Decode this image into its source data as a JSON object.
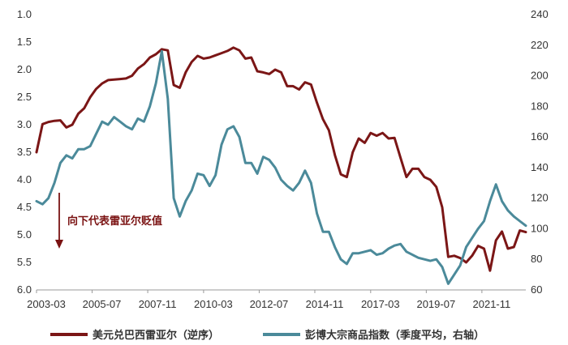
{
  "chart_data": {
    "type": "line",
    "x_ticks": [
      "2003-03",
      "2005-07",
      "2007-11",
      "2010-03",
      "2012-07",
      "2014-11",
      "2017-03",
      "2019-07",
      "2021-11"
    ],
    "x_start": 2003.17,
    "x_end": 2023.67,
    "x_tick_positions": [
      2003.17,
      2005.5,
      2007.83,
      2010.17,
      2012.5,
      2014.83,
      2017.17,
      2019.5,
      2021.83
    ],
    "y_left": {
      "min": 1.0,
      "max": 6.0,
      "inverted": true,
      "ticks": [
        "1.0",
        "1.5",
        "2.0",
        "2.5",
        "3.0",
        "3.5",
        "4.0",
        "4.5",
        "5.0",
        "5.5",
        "6.0"
      ]
    },
    "y_right": {
      "min": 60,
      "max": 240,
      "inverted": false,
      "ticks": [
        "240",
        "220",
        "200",
        "180",
        "160",
        "140",
        "120",
        "100",
        "80",
        "60"
      ]
    },
    "annotation": "向下代表雷亚尔贬值",
    "series": [
      {
        "name": "美元兑巴西雷亚尔（逆序）",
        "axis": "left",
        "color": "#7b1616",
        "points": [
          [
            2003.17,
            3.5
          ],
          [
            2003.42,
            2.99
          ],
          [
            2003.67,
            2.95
          ],
          [
            2003.92,
            2.93
          ],
          [
            2004.17,
            2.92
          ],
          [
            2004.42,
            3.05
          ],
          [
            2004.67,
            3.0
          ],
          [
            2004.92,
            2.8
          ],
          [
            2005.17,
            2.7
          ],
          [
            2005.42,
            2.5
          ],
          [
            2005.67,
            2.35
          ],
          [
            2005.92,
            2.25
          ],
          [
            2006.17,
            2.19
          ],
          [
            2006.42,
            2.18
          ],
          [
            2006.67,
            2.17
          ],
          [
            2006.92,
            2.16
          ],
          [
            2007.17,
            2.11
          ],
          [
            2007.42,
            1.98
          ],
          [
            2007.67,
            1.9
          ],
          [
            2007.92,
            1.78
          ],
          [
            2008.17,
            1.72
          ],
          [
            2008.42,
            1.63
          ],
          [
            2008.67,
            1.65
          ],
          [
            2008.92,
            2.28
          ],
          [
            2009.17,
            2.33
          ],
          [
            2009.42,
            2.05
          ],
          [
            2009.67,
            1.86
          ],
          [
            2009.92,
            1.75
          ],
          [
            2010.17,
            1.8
          ],
          [
            2010.42,
            1.78
          ],
          [
            2010.67,
            1.74
          ],
          [
            2010.92,
            1.7
          ],
          [
            2011.17,
            1.66
          ],
          [
            2011.42,
            1.6
          ],
          [
            2011.67,
            1.65
          ],
          [
            2011.92,
            1.8
          ],
          [
            2012.17,
            1.78
          ],
          [
            2012.42,
            2.03
          ],
          [
            2012.67,
            2.05
          ],
          [
            2012.92,
            2.08
          ],
          [
            2013.17,
            2.0
          ],
          [
            2013.42,
            2.05
          ],
          [
            2013.67,
            2.3
          ],
          [
            2013.92,
            2.3
          ],
          [
            2014.17,
            2.36
          ],
          [
            2014.42,
            2.23
          ],
          [
            2014.67,
            2.27
          ],
          [
            2014.92,
            2.6
          ],
          [
            2015.17,
            2.9
          ],
          [
            2015.42,
            3.1
          ],
          [
            2015.67,
            3.55
          ],
          [
            2015.92,
            3.9
          ],
          [
            2016.17,
            3.95
          ],
          [
            2016.42,
            3.5
          ],
          [
            2016.67,
            3.25
          ],
          [
            2016.92,
            3.33
          ],
          [
            2017.17,
            3.15
          ],
          [
            2017.42,
            3.2
          ],
          [
            2017.67,
            3.15
          ],
          [
            2017.92,
            3.25
          ],
          [
            2018.17,
            3.24
          ],
          [
            2018.42,
            3.6
          ],
          [
            2018.67,
            3.95
          ],
          [
            2018.92,
            3.8
          ],
          [
            2019.17,
            3.8
          ],
          [
            2019.42,
            3.95
          ],
          [
            2019.67,
            4.0
          ],
          [
            2019.92,
            4.13
          ],
          [
            2020.17,
            4.5
          ],
          [
            2020.42,
            5.4
          ],
          [
            2020.67,
            5.38
          ],
          [
            2020.92,
            5.42
          ],
          [
            2021.17,
            5.5
          ],
          [
            2021.42,
            5.38
          ],
          [
            2021.67,
            5.2
          ],
          [
            2021.92,
            5.25
          ],
          [
            2022.17,
            5.65
          ],
          [
            2022.42,
            5.1
          ],
          [
            2022.67,
            4.94
          ],
          [
            2022.92,
            5.25
          ],
          [
            2023.17,
            5.22
          ],
          [
            2023.42,
            4.92
          ],
          [
            2023.67,
            4.95
          ]
        ]
      },
      {
        "name": "彭博大宗商品指数（季度平均，右轴）",
        "axis": "right",
        "color": "#4b8a9a",
        "points": [
          [
            2003.17,
            118
          ],
          [
            2003.42,
            116
          ],
          [
            2003.67,
            120
          ],
          [
            2003.92,
            130
          ],
          [
            2004.17,
            143
          ],
          [
            2004.42,
            148
          ],
          [
            2004.67,
            146
          ],
          [
            2004.92,
            152
          ],
          [
            2005.17,
            152
          ],
          [
            2005.42,
            154
          ],
          [
            2005.67,
            162
          ],
          [
            2005.92,
            170
          ],
          [
            2006.17,
            168
          ],
          [
            2006.42,
            173
          ],
          [
            2006.67,
            170
          ],
          [
            2006.92,
            167
          ],
          [
            2007.17,
            165
          ],
          [
            2007.42,
            172
          ],
          [
            2007.67,
            170
          ],
          [
            2007.92,
            180
          ],
          [
            2008.17,
            195
          ],
          [
            2008.42,
            216
          ],
          [
            2008.67,
            185
          ],
          [
            2008.92,
            120
          ],
          [
            2009.17,
            108
          ],
          [
            2009.42,
            118
          ],
          [
            2009.67,
            125
          ],
          [
            2009.92,
            136
          ],
          [
            2010.17,
            135
          ],
          [
            2010.42,
            128
          ],
          [
            2010.67,
            135
          ],
          [
            2010.92,
            155
          ],
          [
            2011.17,
            165
          ],
          [
            2011.42,
            167
          ],
          [
            2011.67,
            160
          ],
          [
            2011.92,
            143
          ],
          [
            2012.17,
            143
          ],
          [
            2012.42,
            136
          ],
          [
            2012.67,
            147
          ],
          [
            2012.92,
            145
          ],
          [
            2013.17,
            140
          ],
          [
            2013.42,
            132
          ],
          [
            2013.67,
            128
          ],
          [
            2013.92,
            125
          ],
          [
            2014.17,
            130
          ],
          [
            2014.42,
            138
          ],
          [
            2014.67,
            130
          ],
          [
            2014.92,
            110
          ],
          [
            2015.17,
            98
          ],
          [
            2015.42,
            98
          ],
          [
            2015.67,
            88
          ],
          [
            2015.92,
            80
          ],
          [
            2016.17,
            77
          ],
          [
            2016.42,
            84
          ],
          [
            2016.67,
            84
          ],
          [
            2016.92,
            85
          ],
          [
            2017.17,
            86
          ],
          [
            2017.42,
            83
          ],
          [
            2017.67,
            84
          ],
          [
            2017.92,
            87
          ],
          [
            2018.17,
            89
          ],
          [
            2018.42,
            90
          ],
          [
            2018.67,
            85
          ],
          [
            2018.92,
            83
          ],
          [
            2019.17,
            81
          ],
          [
            2019.42,
            80
          ],
          [
            2019.67,
            79
          ],
          [
            2019.92,
            80
          ],
          [
            2020.17,
            75
          ],
          [
            2020.42,
            64
          ],
          [
            2020.67,
            70
          ],
          [
            2020.92,
            76
          ],
          [
            2021.17,
            88
          ],
          [
            2021.42,
            94
          ],
          [
            2021.67,
            100
          ],
          [
            2021.92,
            105
          ],
          [
            2022.17,
            118
          ],
          [
            2022.42,
            129
          ],
          [
            2022.67,
            118
          ],
          [
            2022.92,
            112
          ],
          [
            2023.17,
            108
          ],
          [
            2023.42,
            105
          ],
          [
            2023.67,
            102
          ]
        ]
      }
    ],
    "legend_position": "bottom"
  }
}
